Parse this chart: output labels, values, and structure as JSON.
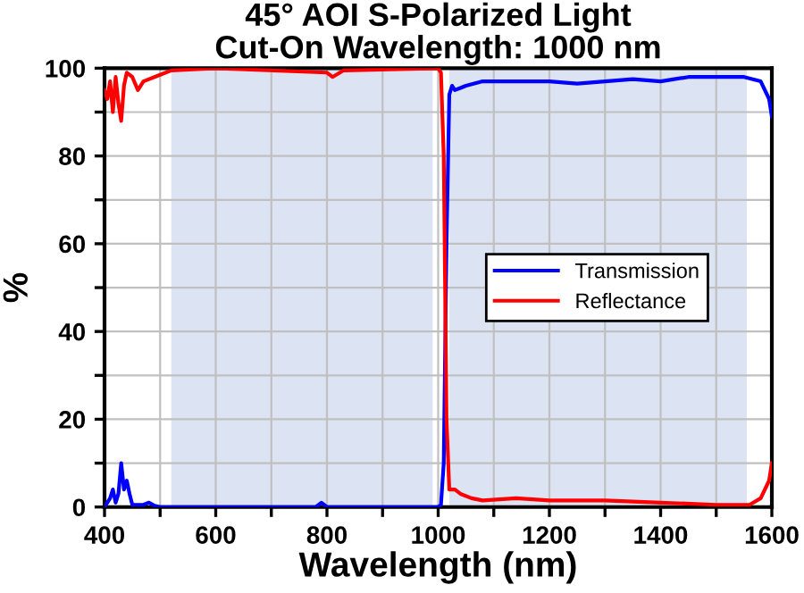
{
  "chart_data": {
    "type": "line",
    "title": "45° AOI S-Polarized Light\nCut-On Wavelength: 1000 nm",
    "xlabel": "Wavelength (nm)",
    "ylabel": "%",
    "xlim": [
      400,
      1600
    ],
    "ylim": [
      0,
      100
    ],
    "xticks": [
      400,
      {
        "value": 500,
        "label": null
      },
      600,
      {
        "value": 700,
        "label": null
      },
      800,
      {
        "value": 900,
        "label": null
      },
      1000,
      {
        "value": 1100,
        "label": null
      },
      1200,
      {
        "value": 1300,
        "label": null
      },
      1400,
      {
        "value": 1500,
        "label": null
      },
      1600
    ],
    "yticks": [
      0,
      {
        "value": 10,
        "label": null
      },
      20,
      {
        "value": 30,
        "label": null
      },
      40,
      {
        "value": 50,
        "label": null
      },
      60,
      {
        "value": 70,
        "label": null
      },
      80,
      {
        "value": 90,
        "label": null
      },
      100
    ],
    "grid": true,
    "legend": "center right",
    "bands": [
      {
        "axis": "x",
        "from": 520,
        "to": 990,
        "color": "#dce3f2"
      },
      {
        "axis": "x",
        "from": 1020,
        "to": 1555,
        "color": "#dce3f2"
      }
    ],
    "series": [
      {
        "name": "Transmission",
        "color": "#0000ff",
        "x": [
          400,
          410,
          415,
          420,
          425,
          430,
          435,
          440,
          445,
          450,
          470,
          480,
          490,
          500,
          600,
          700,
          780,
          790,
          800,
          900,
          1000,
          1005,
          1010,
          1015,
          1020,
          1025,
          1030,
          1040,
          1050,
          1080,
          1120,
          1200,
          1250,
          1300,
          1350,
          1400,
          1450,
          1500,
          1550,
          1580,
          1595,
          1600
        ],
        "values": [
          0,
          2,
          4,
          1,
          3,
          10,
          4,
          6,
          3,
          0.5,
          0.5,
          1,
          0.3,
          0,
          0,
          0,
          0,
          1,
          0,
          0,
          0,
          0.5,
          10,
          60,
          94,
          96,
          95,
          95.5,
          96,
          97,
          97,
          97,
          96.5,
          97,
          97.5,
          97,
          98,
          98,
          98,
          97,
          93,
          89
        ]
      },
      {
        "name": "Reflectance",
        "color": "#ff0000",
        "x": [
          400,
          405,
          410,
          415,
          420,
          425,
          430,
          435,
          440,
          450,
          460,
          470,
          500,
          520,
          600,
          800,
          810,
          830,
          1000,
          1005,
          1010,
          1015,
          1020,
          1030,
          1040,
          1060,
          1080,
          1140,
          1200,
          1300,
          1400,
          1500,
          1560,
          1580,
          1595,
          1600
        ],
        "values": [
          95,
          93,
          97,
          90,
          98,
          92,
          88,
          96,
          99,
          98,
          95,
          97,
          98.5,
          99.5,
          100,
          99,
          98,
          99.5,
          100,
          99,
          80,
          20,
          4,
          4,
          3,
          2,
          1.5,
          2,
          1.5,
          1.5,
          1,
          0.5,
          0.5,
          2,
          6,
          10
        ]
      }
    ]
  }
}
